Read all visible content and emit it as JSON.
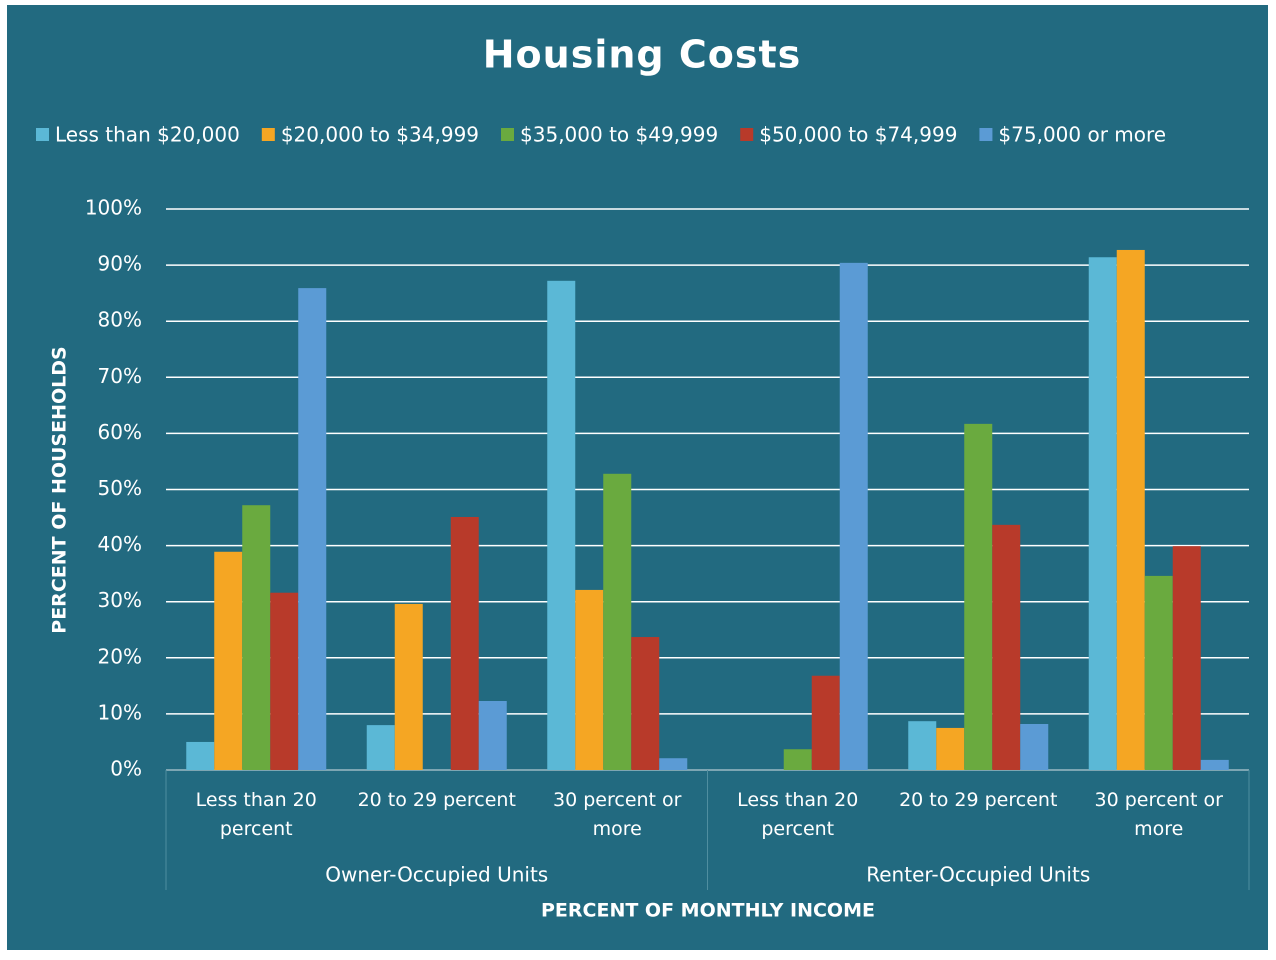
{
  "chart_data": {
    "type": "bar",
    "title": "Housing Costs",
    "x_label": "PERCENT OF MONTHLY INCOME",
    "y_label": "PERCENT OF HOUSEHOLDS",
    "categories": [
      "Less than 20 percent",
      "20 to 29 percent",
      "30 percent or more",
      "Less than 20 percent",
      "20 to 29 percent",
      "30 percent or more"
    ],
    "groups": [
      {
        "name": "Owner-Occupied Units",
        "size": 3
      },
      {
        "name": "Renter-Occupied Units",
        "size": 3
      }
    ],
    "series": [
      {
        "name": "Less than $20,000",
        "color": "#5bb8d6",
        "values": [
          5.0,
          8.0,
          87.2,
          0,
          8.7,
          91.4
        ]
      },
      {
        "name": "$20,000 to $34,999",
        "color": "#f5a623",
        "values": [
          38.9,
          29.6,
          32.1,
          0,
          7.5,
          92.7
        ]
      },
      {
        "name": "$35,000 to $49,999",
        "color": "#6aaa3f",
        "values": [
          47.2,
          0,
          52.8,
          3.7,
          61.7,
          34.6
        ]
      },
      {
        "name": "$50,000 to $74,999",
        "color": "#b83a2a",
        "values": [
          31.6,
          45.1,
          23.7,
          16.8,
          43.7,
          39.9
        ]
      },
      {
        "name": "$75,000 or more",
        "color": "#5b9bd5",
        "values": [
          85.9,
          12.3,
          2.1,
          90.4,
          8.2,
          1.8
        ]
      }
    ],
    "ylim": [
      0,
      100
    ],
    "yticks": [
      {
        "value": 0,
        "label": "0%"
      },
      {
        "value": 10,
        "label": "10%"
      },
      {
        "value": 20,
        "label": "20%"
      },
      {
        "value": 30,
        "label": "30%"
      },
      {
        "value": 40,
        "label": "40%"
      },
      {
        "value": 50,
        "label": "50%"
      },
      {
        "value": 60,
        "label": "60%"
      },
      {
        "value": 70,
        "label": "70%"
      },
      {
        "value": 80,
        "label": "80%"
      },
      {
        "value": 90,
        "label": "90%"
      },
      {
        "value": 100,
        "label": "100%"
      }
    ],
    "grid": true,
    "legend": "top"
  }
}
